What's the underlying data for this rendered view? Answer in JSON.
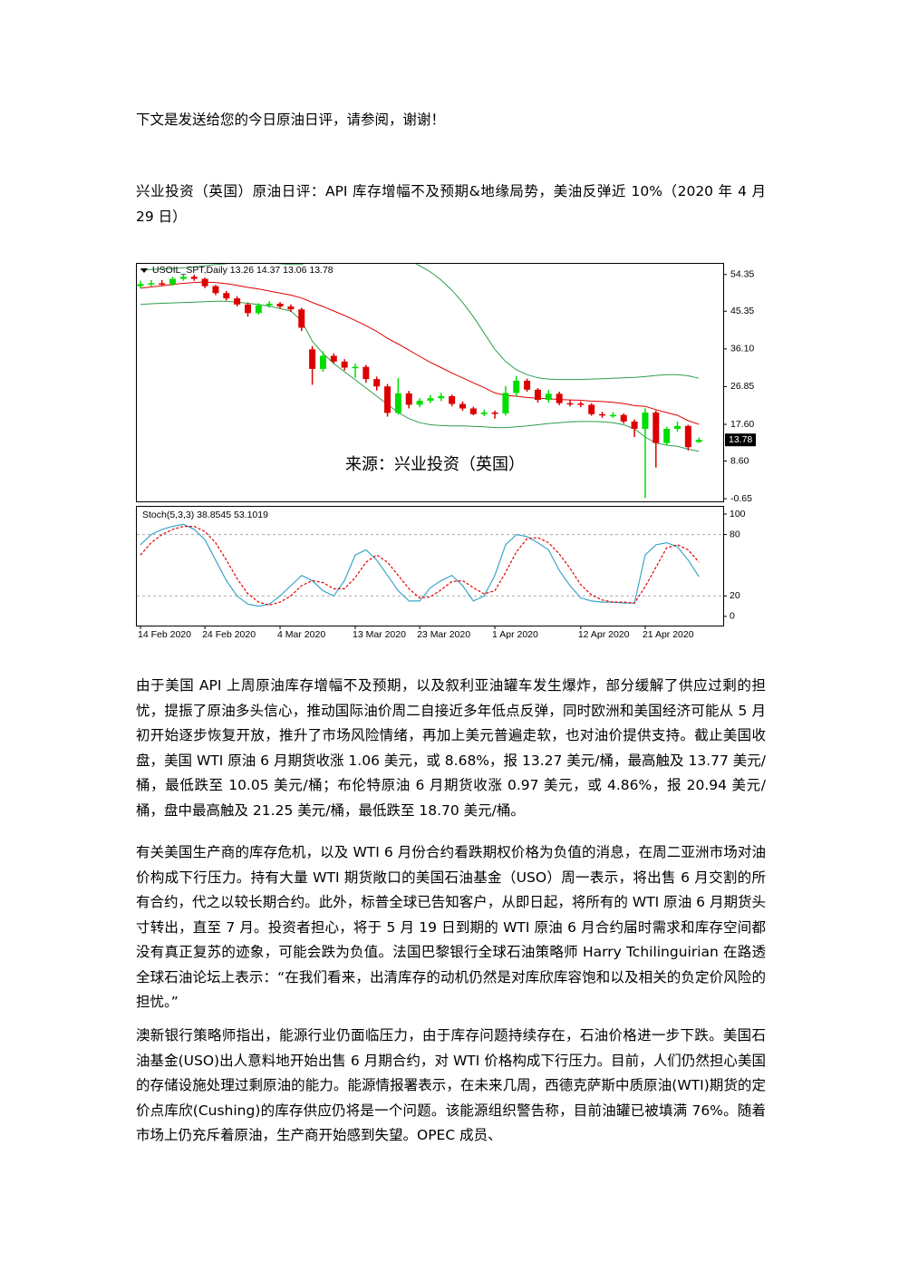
{
  "paragraphs": [
    "下文是发送给您的今日原油日评，请参阅，谢谢！",
    "兴业投资（英国）原油日评：API 库存增幅不及预期&地缘局势，美油反弹近 10%（2020 年 4 月 29 日）",
    "由于美国 API 上周原油库存增幅不及预期，以及叙利亚油罐车发生爆炸，部分缓解了供应过剩的担忧，提振了原油多头信心，推动国际油价周二自接近多年低点反弹，同时欧洲和美国经济可能从 5 月初开始逐步恢复开放，推升了市场风险情绪，再加上美元普遍走软，也对油价提供支持。截止美国收盘，美国 WTI 原油 6 月期货收涨 1.06 美元，或 8.68%，报 13.27 美元/桶，最高触及 13.77 美元/桶，最低跌至 10.05 美元/桶；布伦特原油 6 月期货收涨 0.97 美元，或 4.86%，报 20.94 美元/桶，盘中最高触及 21.25 美元/桶，最低跌至 18.70 美元/桶。",
    "有关美国生产商的库存危机，以及 WTI 6 月份合约看跌期权价格为负值的消息，在周二亚洲市场对油价构成下行压力。持有大量 WTI 期货敞口的美国石油基金（USO）周一表示，将出售 6 月交割的所有合约，代之以较长期合约。此外，标普全球已告知客户，从即日起，将所有的 WTI 原油 6 月期货头寸转出，直至 7 月。投资者担心，将于 5 月 19 日到期的 WTI 原油 6 月合约届时需求和库存空间都没有真正复苏的迹象，可能会跌为负值。法国巴黎银行全球石油策略师 Harry Tchilinguirian 在路透全球石油论坛上表示：“在我们看来，出清库存的动机仍然是对库欣库容饱和以及相关的负定价风险的担忧。”",
    "澳新银行策略师指出，能源行业仍面临压力，由于库存问题持续存在，石油价格进一步下跌。美国石油基金(USO)出人意料地开始出售 6 月期合约，对 WTI 价格构成下行压力。目前，人们仍然担心美国的存储设施处理过剩原油的能力。能源情报署表示，在未来几周，西德克萨斯中质原油(WTI)期货的定价点库欣(Cushing)的库存供应仍将是一个问题。该能源组织警告称，目前油罐已被填满 76%。随着市场上仍充斥着原油，生产商开始感到失望。OPEC 成员、"
  ],
  "chart_data": [
    {
      "type": "candlestick",
      "title": "USOIL_SPT,Daily 13.26 14.37 13.06 13.78",
      "annotation": "来源：兴业投资（英国）",
      "categories": [
        "14 Feb 2020",
        null,
        null,
        null,
        null,
        null,
        "24 Feb 2020",
        null,
        null,
        null,
        null,
        null,
        null,
        "4 Mar 2020",
        null,
        null,
        null,
        null,
        null,
        null,
        "13 Mar 2020",
        null,
        null,
        null,
        null,
        null,
        "23 Mar 2020",
        null,
        null,
        null,
        null,
        null,
        null,
        "1 Apr 2020",
        null,
        null,
        null,
        null,
        null,
        null,
        null,
        "12 Apr 2020",
        null,
        null,
        null,
        null,
        null,
        "21 Apr 2020",
        null,
        null,
        null,
        null,
        null
      ],
      "open": [
        51.5,
        52.0,
        52.2,
        52.0,
        53.3,
        53.8,
        53.3,
        51.5,
        49.8,
        48.5,
        47.0,
        44.9,
        46.8,
        47.2,
        46.5,
        45.8,
        36.0,
        31.2,
        34.4,
        33.0,
        31.5,
        31.7,
        28.7,
        26.9,
        20.4,
        25.2,
        22.4,
        23.4,
        24.0,
        24.5,
        22.6,
        21.5,
        20.1,
        20.5,
        20.3,
        25.3,
        28.3,
        26.1,
        23.6,
        25.1,
        22.8,
        22.7,
        22.4,
        20.1,
        19.9,
        19.9,
        18.3,
        16.5,
        20.5,
        13.0,
        16.5,
        17.2,
        13.26
      ],
      "high": [
        52.8,
        53.0,
        53.0,
        53.8,
        54.5,
        54.3,
        53.6,
        51.8,
        50.3,
        49.0,
        47.5,
        47.3,
        47.8,
        47.6,
        47.0,
        46.2,
        36.8,
        35.5,
        35.0,
        33.6,
        32.5,
        32.2,
        29.3,
        27.5,
        29.0,
        25.8,
        24.0,
        24.8,
        25.3,
        24.9,
        23.2,
        21.9,
        21.2,
        21.0,
        27.0,
        29.5,
        28.8,
        26.5,
        26.0,
        25.6,
        23.5,
        23.2,
        22.8,
        20.7,
        20.6,
        20.3,
        18.8,
        21.5,
        21.0,
        17.0,
        18.3,
        17.5,
        14.37
      ],
      "low": [
        51.0,
        51.5,
        51.5,
        51.6,
        52.8,
        52.8,
        51.0,
        49.3,
        48.0,
        46.5,
        44.0,
        44.5,
        46.2,
        46.0,
        45.2,
        40.5,
        27.3,
        30.5,
        32.5,
        30.8,
        29.0,
        27.8,
        25.9,
        19.5,
        20.0,
        21.5,
        21.8,
        22.8,
        23.3,
        22.0,
        20.9,
        19.8,
        19.6,
        19.0,
        19.8,
        24.5,
        25.6,
        22.9,
        22.9,
        22.3,
        22.0,
        21.8,
        19.7,
        19.2,
        19.2,
        17.8,
        14.5,
        -0.5,
        7.0,
        12.5,
        15.8,
        11.2,
        13.06
      ],
      "close": [
        52.0,
        52.2,
        52.0,
        53.3,
        53.8,
        53.3,
        51.5,
        49.8,
        48.5,
        47.0,
        44.9,
        46.8,
        47.2,
        46.5,
        45.8,
        41.3,
        31.2,
        34.4,
        33.0,
        31.5,
        31.7,
        28.7,
        26.9,
        20.4,
        25.2,
        22.4,
        23.4,
        24.0,
        24.5,
        22.6,
        21.5,
        20.1,
        20.5,
        20.3,
        25.3,
        28.3,
        26.1,
        23.6,
        25.1,
        22.8,
        22.7,
        22.4,
        20.1,
        19.9,
        19.9,
        18.3,
        16.5,
        20.5,
        13.0,
        16.5,
        17.2,
        12.0,
        13.78
      ],
      "up_color": "#00dd00",
      "down_color": "#dd0000",
      "bands": {
        "color": "#2e9e4a",
        "middle_color": "#e00000",
        "upper": [
          55.5,
          55.6,
          55.7,
          55.8,
          56.0,
          56.2,
          56.5,
          56.8,
          57.0,
          57.2,
          57.5,
          57.3,
          57.2,
          57.0,
          56.8,
          56.8,
          58.5,
          59.5,
          60.0,
          60.5,
          60.5,
          60.3,
          60.0,
          59.5,
          59.0,
          58.0,
          56.5,
          55.0,
          53.0,
          50.5,
          47.5,
          44.0,
          40.0,
          36.0,
          33.0,
          31.0,
          29.8,
          29.0,
          28.7,
          28.6,
          28.6,
          28.6,
          28.7,
          28.8,
          28.9,
          29.0,
          29.1,
          29.3,
          29.6,
          29.8,
          29.8,
          29.5,
          28.9
        ],
        "middle": [
          51.0,
          51.3,
          51.6,
          51.9,
          52.2,
          52.4,
          52.5,
          52.4,
          52.1,
          51.7,
          51.2,
          50.8,
          50.3,
          49.8,
          49.3,
          48.6,
          47.5,
          46.5,
          45.4,
          44.3,
          43.1,
          41.8,
          40.4,
          38.7,
          37.3,
          35.8,
          34.3,
          32.8,
          31.5,
          30.2,
          29.0,
          27.8,
          26.6,
          25.3,
          24.7,
          24.5,
          24.2,
          24.0,
          23.9,
          23.7,
          23.6,
          23.5,
          23.3,
          23.2,
          23.0,
          22.7,
          22.2,
          22.0,
          21.2,
          20.5,
          19.8,
          18.5,
          17.6
        ],
        "lower": [
          47.0,
          47.2,
          47.3,
          47.4,
          47.5,
          47.6,
          47.7,
          47.8,
          47.8,
          47.6,
          47.3,
          47.0,
          46.6,
          46.0,
          45.4,
          43.0,
          38.0,
          35.0,
          32.5,
          30.5,
          28.5,
          26.5,
          24.5,
          22.5,
          20.5,
          19.0,
          18.0,
          17.5,
          17.3,
          17.2,
          17.2,
          17.1,
          17.0,
          16.8,
          16.8,
          17.0,
          17.2,
          17.5,
          17.8,
          18.0,
          18.2,
          18.3,
          18.3,
          18.2,
          18.0,
          17.5,
          16.5,
          14.5,
          13.0,
          12.5,
          12.2,
          11.5,
          11.0
        ]
      },
      "ylim": [
        -1.3,
        57.2
      ],
      "yticks": [
        54.35,
        45.35,
        {
          "value": 36.1,
          "label": "36.10"
        },
        26.85,
        {
          "value": 17.6,
          "label": "17.60"
        },
        {
          "value": 8.6,
          "label": "8.60"
        },
        -0.65
      ]
    },
    {
      "type": "line",
      "title": "Stoch(5,3,3) 38.8545 53.1019",
      "series": [
        {
          "color": "#3aa6c8",
          "values": [
            70,
            80,
            85,
            88,
            90,
            85,
            75,
            55,
            35,
            20,
            12,
            10,
            12,
            20,
            30,
            40,
            35,
            25,
            20,
            35,
            60,
            65,
            55,
            40,
            25,
            15,
            15,
            28,
            35,
            40,
            30,
            15,
            20,
            40,
            70,
            80,
            78,
            72,
            65,
            45,
            30,
            18,
            15,
            14,
            14,
            13,
            13,
            60,
            70,
            72,
            68,
            55,
            38.8545
          ]
        },
        {
          "color": "#e00000",
          "dashed": true,
          "values": [
            60,
            72,
            80,
            85,
            88,
            88,
            83,
            72,
            55,
            37,
            22,
            14,
            11,
            14,
            20,
            30,
            35,
            33,
            27,
            27,
            38,
            53,
            60,
            53,
            40,
            27,
            18,
            19,
            26,
            34,
            35,
            28,
            22,
            25,
            43,
            63,
            76,
            77,
            72,
            61,
            47,
            31,
            21,
            16,
            14,
            14,
            13,
            29,
            48,
            67,
            70,
            65,
            53.1019
          ]
        }
      ],
      "ylim": [
        -9,
        108
      ],
      "yticks": [
        100,
        80,
        20,
        0
      ],
      "levels": [
        80,
        20
      ]
    }
  ]
}
